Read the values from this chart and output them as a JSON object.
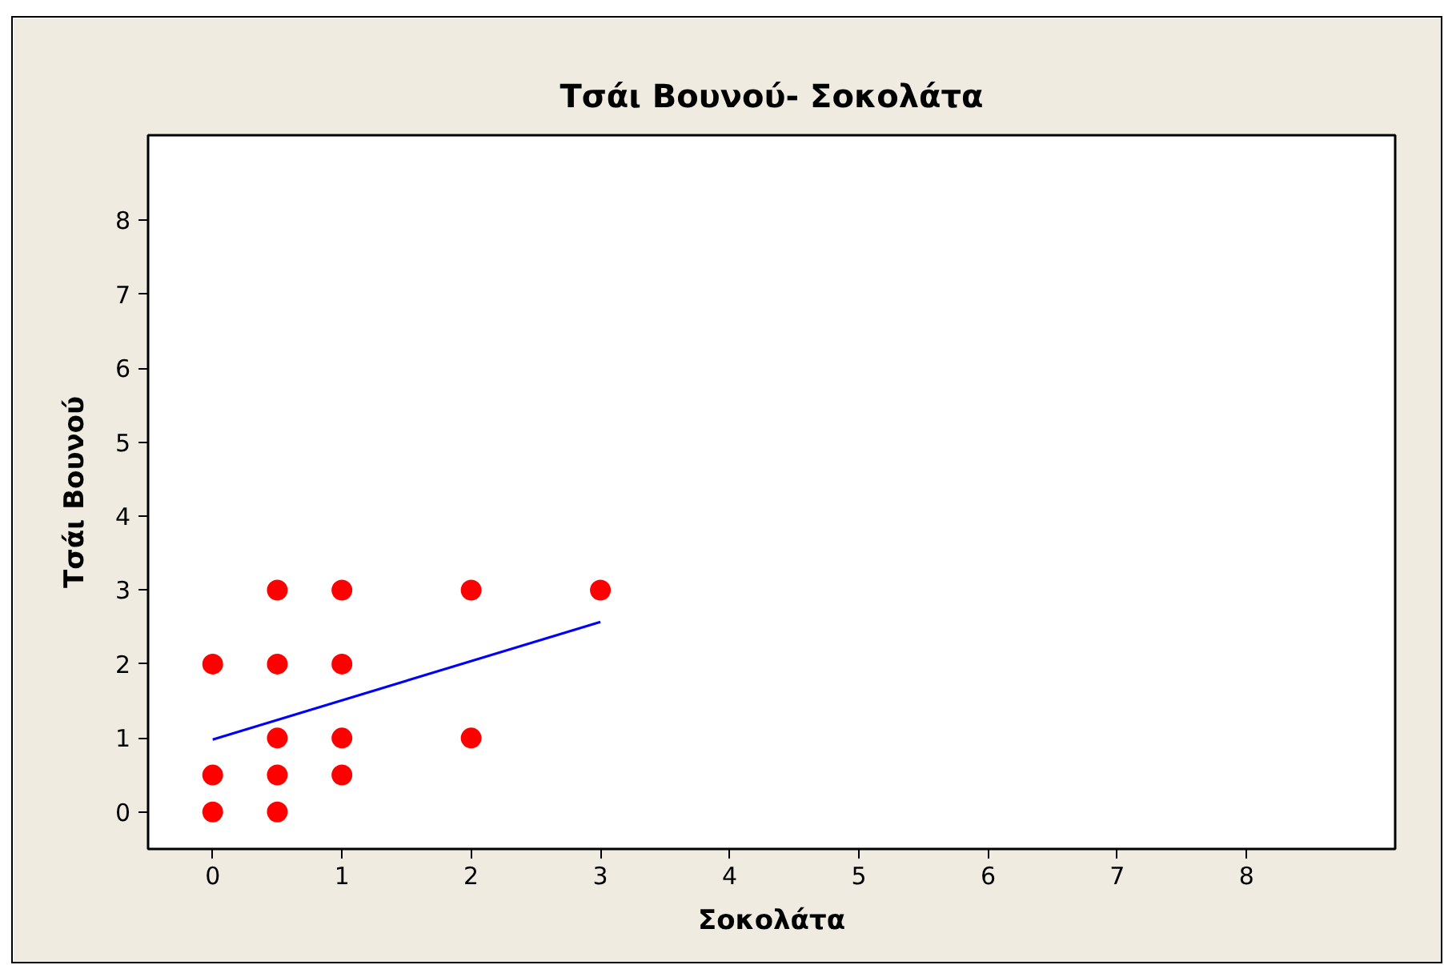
{
  "chart_data": {
    "type": "scatter",
    "title": "Τσάι Βουνού- Σοκολάτα",
    "xlabel": "Σοκολάτα",
    "ylabel": "Τσάι Βουνού",
    "xlim": [
      -0.5,
      9.15
    ],
    "ylim": [
      -0.5,
      9.15
    ],
    "xticks": [
      0,
      1,
      2,
      3,
      4,
      5,
      6,
      7,
      8
    ],
    "yticks": [
      0,
      1,
      2,
      3,
      4,
      5,
      6,
      7,
      8
    ],
    "series": [
      {
        "color": "#ff0000",
        "marker": "circle",
        "x": [
          0,
          0,
          0,
          0.5,
          0.5,
          0.5,
          0.5,
          0.5,
          1,
          1,
          1,
          1,
          2,
          2,
          3
        ],
        "values": [
          0,
          0.5,
          2,
          0,
          0.5,
          1,
          2,
          3,
          0.5,
          1,
          2,
          3,
          1,
          3,
          3
        ]
      },
      {
        "type": "line",
        "color": "#0000ff",
        "x": [
          0,
          3
        ],
        "values": [
          0.98,
          2.57
        ]
      }
    ]
  }
}
